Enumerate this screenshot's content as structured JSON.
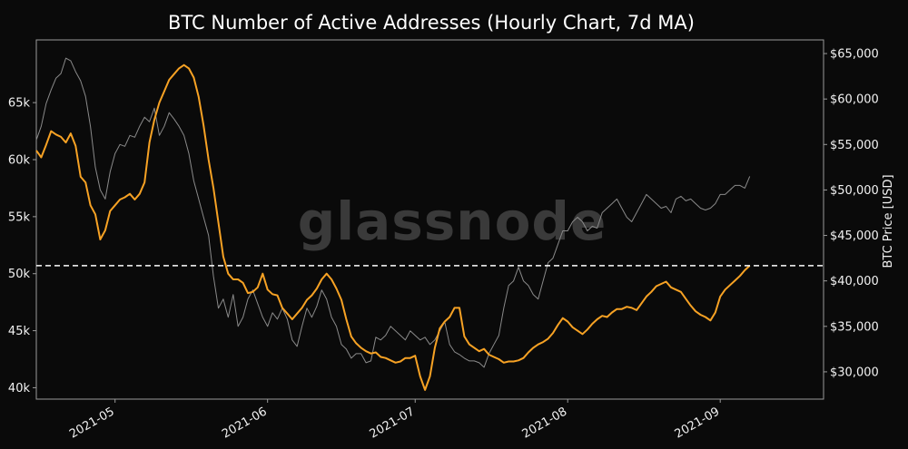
{
  "chart_data": {
    "type": "line",
    "title": "BTC Number of Active Addresses (Hourly Chart, 7d MA)",
    "watermark": "glassnode",
    "colors": {
      "background": "#0a0a0a",
      "active_addresses": "#f7a224",
      "btc_price": "#8a8a8a",
      "reference_line": "#ffffff",
      "axes": "#9a9a9a"
    },
    "xlabel": "",
    "x_ticks": [
      "2021-05",
      "2021-06",
      "2021-07",
      "2021-08",
      "2021-09"
    ],
    "x_tick_days": [
      16,
      47,
      77,
      108,
      139
    ],
    "xlim_days": [
      0,
      160
    ],
    "y_left": {
      "label": "",
      "ylim": [
        39000,
        70500
      ],
      "ticks": [
        40000,
        45000,
        50000,
        55000,
        60000,
        65000
      ],
      "tick_labels": [
        "40k",
        "45k",
        "50k",
        "55k",
        "60k",
        "65k"
      ]
    },
    "y_right": {
      "label": "BTC Price [USD]",
      "ylim": [
        27000,
        66500
      ],
      "ticks": [
        30000,
        35000,
        40000,
        45000,
        50000,
        55000,
        60000,
        65000
      ],
      "tick_labels": [
        "$30,000",
        "$35,000",
        "$40,000",
        "$45,000",
        "$50,000",
        "$55,000",
        "$60,000",
        "$65,000"
      ]
    },
    "reference_line": {
      "value": 50700,
      "axis": "left",
      "style": "dashed"
    },
    "series": [
      {
        "name": "Active Addresses (7d MA)",
        "axis": "left",
        "x": [
          0,
          1,
          2,
          3,
          4,
          5,
          6,
          7,
          8,
          9,
          10,
          11,
          12,
          13,
          14,
          15,
          16,
          17,
          18,
          19,
          20,
          21,
          22,
          23,
          24,
          25,
          26,
          27,
          28,
          29,
          30,
          31,
          32,
          33,
          34,
          35,
          36,
          37,
          38,
          39,
          40,
          41,
          42,
          43,
          44,
          45,
          46,
          47,
          48,
          49,
          50,
          51,
          52,
          53,
          54,
          55,
          56,
          57,
          58,
          59,
          60,
          61,
          62,
          63,
          64,
          65,
          66,
          67,
          68,
          69,
          70,
          71,
          72,
          73,
          74,
          75,
          76,
          77,
          78,
          79,
          80,
          81,
          82,
          83,
          84,
          85,
          86,
          87,
          88,
          89,
          90,
          91,
          92,
          93,
          94,
          95,
          96,
          97,
          98,
          99,
          100,
          101,
          102,
          103,
          104,
          105,
          106,
          107,
          108,
          109,
          110,
          111,
          112,
          113,
          114,
          115,
          116,
          117,
          118,
          119,
          120,
          121,
          122,
          123,
          124,
          125,
          126,
          127,
          128,
          129,
          130,
          131,
          132,
          133,
          134,
          135,
          136,
          137,
          138,
          139,
          140,
          141,
          142,
          143,
          144,
          145
        ],
        "values": [
          60800,
          60200,
          61300,
          62500,
          62200,
          62000,
          61500,
          62300,
          61200,
          58500,
          58000,
          56000,
          55200,
          53000,
          53800,
          55500,
          56000,
          56500,
          56700,
          57000,
          56500,
          57000,
          58000,
          61500,
          63500,
          65000,
          66000,
          67000,
          67500,
          68000,
          68300,
          68000,
          67200,
          65500,
          63000,
          60000,
          57500,
          54500,
          51500,
          50000,
          49500,
          49500,
          49200,
          48300,
          48400,
          48800,
          50000,
          48600,
          48200,
          48100,
          47000,
          46500,
          46000,
          46500,
          47000,
          47700,
          48100,
          48700,
          49500,
          50000,
          49500,
          48700,
          47700,
          46000,
          44500,
          43900,
          43500,
          43200,
          43000,
          43100,
          42700,
          42600,
          42400,
          42200,
          42300,
          42600,
          42600,
          42800,
          41000,
          39800,
          41000,
          43500,
          45200,
          45800,
          46200,
          47000,
          47000,
          44500,
          43800,
          43500,
          43200,
          43400,
          42900,
          42700,
          42500,
          42200,
          42300,
          42300,
          42400,
          42600,
          43100,
          43500,
          43800,
          44000,
          44300,
          44800,
          45500,
          46100,
          45800,
          45300,
          45000,
          44700,
          45100,
          45600,
          46000,
          46300,
          46200,
          46600,
          46900,
          46900,
          47100,
          47000,
          46800,
          47400,
          48000,
          48400,
          48900,
          49100,
          49300,
          48800,
          48600,
          48400,
          47800,
          47200,
          46700,
          46400,
          46200,
          45900,
          46600,
          48000,
          48600,
          49000,
          49400,
          49800,
          50300,
          50700
        ]
      },
      {
        "name": "BTC Price",
        "axis": "right",
        "x": [
          0,
          1,
          2,
          3,
          4,
          5,
          6,
          7,
          8,
          9,
          10,
          11,
          12,
          13,
          14,
          15,
          16,
          17,
          18,
          19,
          20,
          21,
          22,
          23,
          24,
          25,
          26,
          27,
          28,
          29,
          30,
          31,
          32,
          33,
          34,
          35,
          36,
          37,
          38,
          39,
          40,
          41,
          42,
          43,
          44,
          45,
          46,
          47,
          48,
          49,
          50,
          51,
          52,
          53,
          54,
          55,
          56,
          57,
          58,
          59,
          60,
          61,
          62,
          63,
          64,
          65,
          66,
          67,
          68,
          69,
          70,
          71,
          72,
          73,
          74,
          75,
          76,
          77,
          78,
          79,
          80,
          81,
          82,
          83,
          84,
          85,
          86,
          87,
          88,
          89,
          90,
          91,
          92,
          93,
          94,
          95,
          96,
          97,
          98,
          99,
          100,
          101,
          102,
          103,
          104,
          105,
          106,
          107,
          108,
          109,
          110,
          111,
          112,
          113,
          114,
          115,
          116,
          117,
          118,
          119,
          120,
          121,
          122,
          123,
          124,
          125,
          126,
          127,
          128,
          129,
          130,
          131,
          132,
          133,
          134,
          135,
          136,
          137,
          138,
          139,
          140,
          141,
          142,
          143,
          144,
          145
        ],
        "values": [
          55500,
          57000,
          59500,
          61000,
          62300,
          62800,
          64500,
          64200,
          63000,
          62000,
          60300,
          57000,
          52500,
          50000,
          49000,
          52000,
          54000,
          55000,
          54800,
          56000,
          55800,
          57000,
          58000,
          57500,
          59000,
          56000,
          57000,
          58500,
          57800,
          57000,
          56000,
          54000,
          51000,
          49000,
          47000,
          45000,
          40500,
          37000,
          38000,
          36000,
          38500,
          35000,
          36000,
          38000,
          39000,
          37500,
          36000,
          35000,
          36500,
          35800,
          37000,
          35800,
          33500,
          32800,
          35000,
          37000,
          36000,
          37200,
          39000,
          38000,
          36000,
          35000,
          33000,
          32500,
          31500,
          32000,
          32000,
          31000,
          31200,
          33800,
          33500,
          34000,
          35000,
          34500,
          34000,
          33500,
          34500,
          34000,
          33500,
          33800,
          33000,
          33500,
          34500,
          35500,
          33000,
          32200,
          31900,
          31500,
          31200,
          31200,
          31000,
          30500,
          32000,
          33000,
          34000,
          37000,
          39500,
          40000,
          41500,
          40000,
          39500,
          38500,
          38000,
          40000,
          42000,
          42500,
          44000,
          45500,
          45500,
          46500,
          47000,
          46500,
          45500,
          46000,
          45800,
          47500,
          48000,
          48500,
          49000,
          48000,
          47000,
          46500,
          47500,
          48500,
          49500,
          49000,
          48500,
          48000,
          48200,
          47500,
          49000,
          49300,
          48800,
          49000,
          48500,
          48000,
          47800,
          48000,
          48500,
          49500,
          49500,
          50000,
          50500,
          50500,
          50200,
          51500
        ]
      }
    ]
  }
}
